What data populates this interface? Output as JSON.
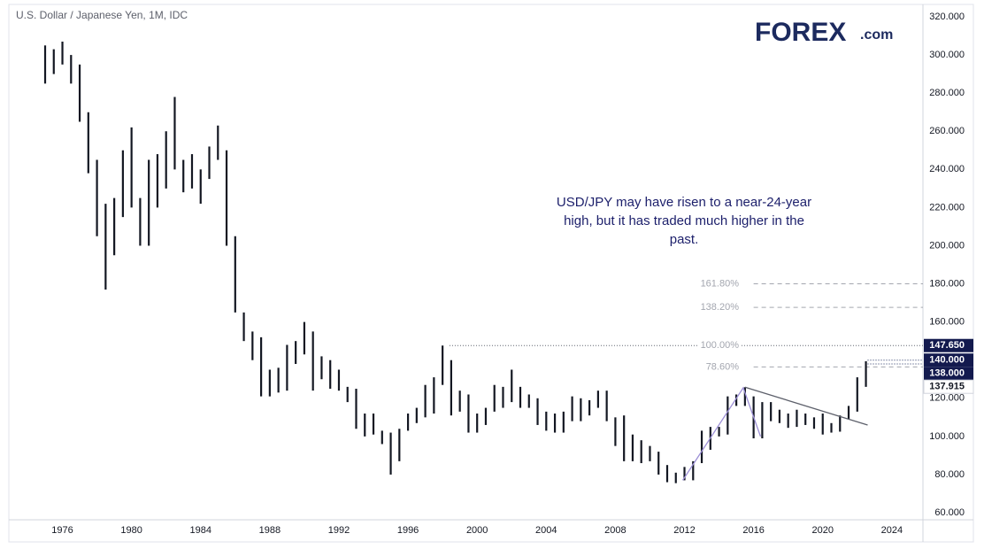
{
  "chart_data": {
    "type": "ohlc",
    "title": "U.S. Dollar / Japanese Yen, 1M, IDC",
    "logo": {
      "name": "FOREX",
      "suffix": ".com"
    },
    "annotation": "USD/JPY may have risen to a near-24-year high, but it has traded much higher in the past.",
    "x": [
      1975.0,
      1975.5,
      1976.0,
      1976.5,
      1977.0,
      1977.5,
      1978.0,
      1978.5,
      1979.0,
      1979.5,
      1980.0,
      1980.5,
      1981.0,
      1981.5,
      1982.0,
      1982.5,
      1983.0,
      1983.5,
      1984.0,
      1984.5,
      1985.0,
      1985.5,
      1986.0,
      1986.5,
      1987.0,
      1987.5,
      1988.0,
      1988.5,
      1989.0,
      1989.5,
      1990.0,
      1990.5,
      1991.0,
      1991.5,
      1992.0,
      1992.5,
      1993.0,
      1993.5,
      1994.0,
      1994.5,
      1995.0,
      1995.5,
      1996.0,
      1996.5,
      1997.0,
      1997.5,
      1998.0,
      1998.5,
      1999.0,
      1999.5,
      2000.0,
      2000.5,
      2001.0,
      2001.5,
      2002.0,
      2002.5,
      2003.0,
      2003.5,
      2004.0,
      2004.5,
      2005.0,
      2005.5,
      2006.0,
      2006.5,
      2007.0,
      2007.5,
      2008.0,
      2008.5,
      2009.0,
      2009.5,
      2010.0,
      2010.5,
      2011.0,
      2011.5,
      2012.0,
      2012.5,
      2013.0,
      2013.5,
      2014.0,
      2014.5,
      2015.0,
      2015.5,
      2016.0,
      2016.5,
      2017.0,
      2017.5,
      2018.0,
      2018.5,
      2019.0,
      2019.5,
      2020.0,
      2020.5,
      2021.0,
      2021.5,
      2022.0,
      2022.5
    ],
    "high": [
      305,
      303,
      307,
      300,
      295,
      270,
      245,
      222,
      225,
      250,
      262,
      225,
      245,
      248,
      260,
      278,
      245,
      248,
      240,
      252,
      263,
      250,
      205,
      165,
      155,
      152,
      135,
      136,
      148,
      150,
      160,
      155,
      142,
      140,
      135,
      126,
      125,
      112,
      112,
      103,
      102,
      104,
      112,
      115,
      127,
      131,
      147.65,
      140,
      124,
      122,
      112,
      115,
      127,
      126,
      135,
      126,
      122,
      120,
      113,
      112,
      113,
      121,
      120,
      119,
      124,
      124,
      110,
      111,
      101,
      98,
      95,
      92,
      85,
      81,
      84,
      87,
      103,
      105,
      105,
      121,
      122,
      125.8,
      121,
      118,
      118,
      114,
      112,
      114,
      112,
      110,
      112,
      107,
      111,
      116,
      131,
      139.4
    ],
    "low": [
      285,
      290,
      295,
      285,
      265,
      238,
      205,
      177,
      195,
      215,
      220,
      200,
      200,
      220,
      230,
      240,
      228,
      230,
      222,
      235,
      245,
      200,
      165,
      150,
      140,
      121,
      121,
      123,
      124,
      138,
      143,
      124,
      130,
      125,
      124,
      118,
      104,
      100,
      101,
      96,
      80,
      87,
      103,
      107,
      110,
      112,
      127,
      111,
      113,
      102,
      102,
      106,
      113,
      115,
      118,
      115,
      115,
      106,
      103,
      102,
      102,
      108,
      108,
      111,
      115,
      108,
      95,
      87,
      87,
      86,
      87,
      80,
      76,
      75.5,
      77,
      77,
      86,
      93,
      100,
      101,
      116,
      116,
      99,
      99,
      108,
      107,
      104.5,
      105,
      106,
      104,
      101,
      102,
      102.5,
      109,
      113,
      126
    ],
    "color": "#131722",
    "trendlines": [
      {
        "points": [
          [
            2011.9,
            77
          ],
          [
            2015.4,
            125.5
          ],
          [
            2016.4,
            100
          ]
        ],
        "color": "#9c8fd6"
      },
      {
        "points": [
          [
            2015.5,
            125.8
          ],
          [
            2022.6,
            106
          ]
        ],
        "color": "#5d606b"
      }
    ],
    "levels": [
      {
        "value": 180,
        "label": "161.80%",
        "start": 2016.0,
        "style": "dashed"
      },
      {
        "value": 167.65,
        "label": "138.20%",
        "start": 2016.0,
        "style": "dashed"
      },
      {
        "value": 147.65,
        "label": "100.00%",
        "start": 1998.4,
        "style": "dotted"
      },
      {
        "value": 136.45,
        "label": "78.60%",
        "start": 2016.0,
        "style": "dashed"
      }
    ],
    "price_tags": [
      {
        "value": 147.65,
        "label": "147.650",
        "style": "dark"
      },
      {
        "value": 140,
        "label": "140.000",
        "style": "dark",
        "line_start": 2022.6
      },
      {
        "value": 138,
        "label": "138.000",
        "style": "dark",
        "line_start": 2022.6
      },
      {
        "value": 137.915,
        "label": "137.915",
        "style": "light"
      }
    ],
    "xlim": [
      1972.9,
      2025.8
    ],
    "xticks": [
      1976,
      1980,
      1984,
      1988,
      1992,
      1996,
      2000,
      2004,
      2008,
      2012,
      2016,
      2020,
      2024
    ],
    "ylim": [
      56.3,
      326.5
    ],
    "yticks": [
      {
        "value": 60,
        "label": "60.000"
      },
      {
        "value": 80,
        "label": "80.000"
      },
      {
        "value": 100,
        "label": "100.000"
      },
      {
        "value": 120,
        "label": "120.000"
      },
      {
        "value": 140,
        "label": "140.000"
      },
      {
        "value": 160,
        "label": "160.000"
      },
      {
        "value": 180,
        "label": "180.000"
      },
      {
        "value": 200,
        "label": "200.000"
      },
      {
        "value": 220,
        "label": "220.000"
      },
      {
        "value": 240,
        "label": "240.000"
      },
      {
        "value": 260,
        "label": "260.000"
      },
      {
        "value": 280,
        "label": "280.000"
      },
      {
        "value": 300,
        "label": "300.000"
      },
      {
        "value": 320,
        "label": "320.000"
      }
    ],
    "grid": false
  }
}
